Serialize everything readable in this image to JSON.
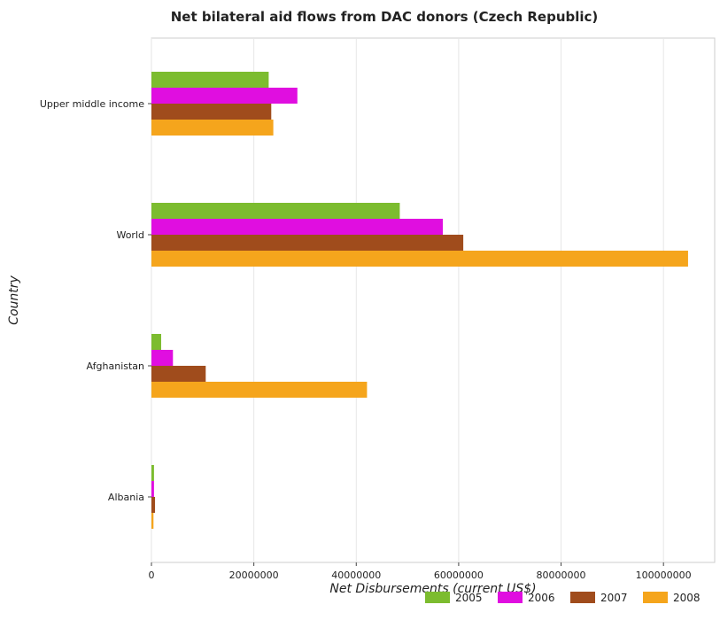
{
  "chart_data": {
    "type": "bar",
    "orientation": "horizontal",
    "title": "Net bilateral aid flows from DAC donors (Czech Republic)",
    "xlabel": "Net Disbursements (current US$)",
    "ylabel": "Country",
    "categories": [
      "Upper middle income",
      "World",
      "Afghanistan",
      "Albania"
    ],
    "series": [
      {
        "name": "2005",
        "color": "#7cbc2f",
        "values": [
          22900000,
          48500000,
          1900000,
          500000
        ]
      },
      {
        "name": "2006",
        "color": "#e00ee0",
        "values": [
          28500000,
          56900000,
          4200000,
          500000
        ]
      },
      {
        "name": "2007",
        "color": "#a04c1c",
        "values": [
          23400000,
          60900000,
          10600000,
          700000
        ]
      },
      {
        "name": "2008",
        "color": "#f5a51c",
        "values": [
          23800000,
          104800000,
          42100000,
          400000
        ]
      }
    ],
    "xlim": [
      0,
      110000000
    ],
    "xticks": [
      0,
      20000000,
      40000000,
      60000000,
      80000000,
      100000000
    ],
    "xtick_labels": [
      "0",
      "20000000",
      "40000000",
      "60000000",
      "80000000",
      "100000000"
    ],
    "grid": true,
    "legend_position": "bottom-right"
  }
}
